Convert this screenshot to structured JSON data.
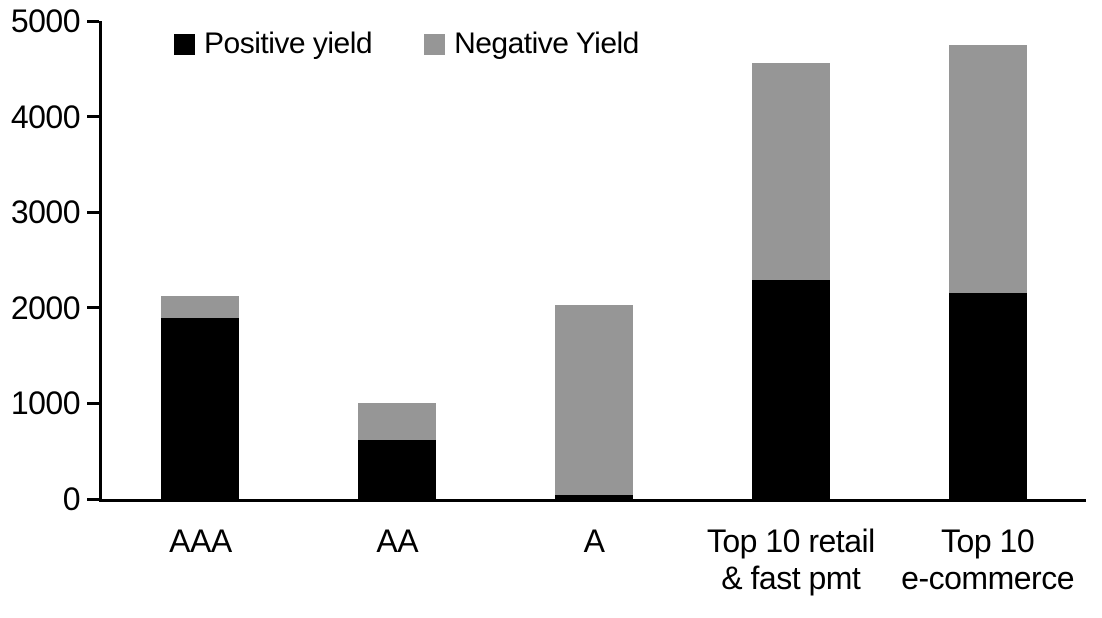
{
  "chart_data": {
    "type": "bar",
    "stacked": true,
    "title": "",
    "categories": [
      "AAA",
      "AA",
      "A",
      "Top 10 retail\n& fast pmt",
      "Top 10\ne-commerce"
    ],
    "series": [
      {
        "name": "Positive yield",
        "color": "#000000",
        "values": [
          1890,
          620,
          40,
          2290,
          2150
        ]
      },
      {
        "name": "Negative Yield",
        "color": "#969696",
        "values": [
          230,
          380,
          1990,
          2270,
          2600
        ]
      }
    ],
    "stack_totals": [
      2120,
      1000,
      2030,
      4560,
      4750
    ],
    "xlabel": "",
    "ylabel": "",
    "ylim": [
      0,
      5000
    ],
    "yticks": [
      0,
      1000,
      2000,
      3000,
      4000,
      5000
    ],
    "grid": false,
    "legend_position": "top",
    "axis_color": "#000000",
    "background_color": "#ffffff"
  }
}
